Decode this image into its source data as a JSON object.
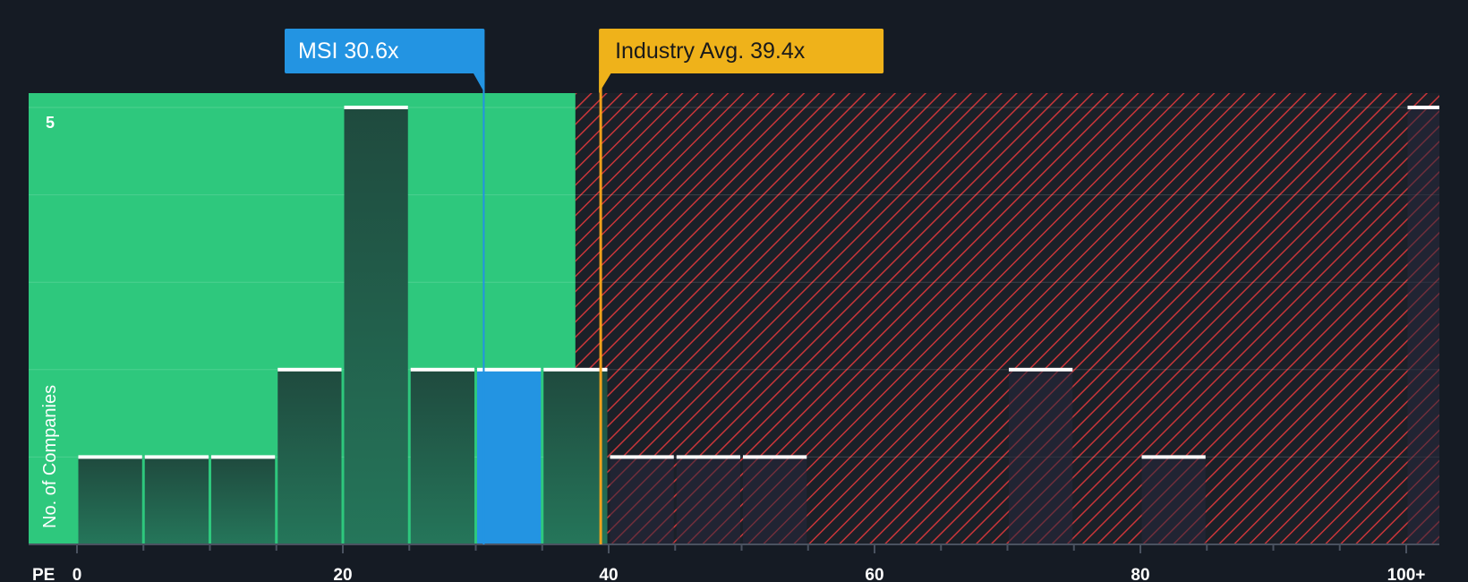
{
  "chart_data": {
    "type": "bar",
    "xlabel": "PE",
    "ylabel": "No. of Companies",
    "x_ticks": [
      "0",
      "20",
      "40",
      "60",
      "80",
      "100+"
    ],
    "y_ticks": [
      "5"
    ],
    "ylim": [
      0,
      5.2
    ],
    "bin_width": 5,
    "bins": [
      {
        "start": 0,
        "count": 1
      },
      {
        "start": 5,
        "count": 1
      },
      {
        "start": 10,
        "count": 1
      },
      {
        "start": 15,
        "count": 2
      },
      {
        "start": 20,
        "count": 5
      },
      {
        "start": 25,
        "count": 2
      },
      {
        "start": 30,
        "count": 2,
        "highlight": true
      },
      {
        "start": 35,
        "count": 2
      },
      {
        "start": 40,
        "count": 1
      },
      {
        "start": 45,
        "count": 1
      },
      {
        "start": 50,
        "count": 1
      },
      {
        "start": 70,
        "count": 2
      },
      {
        "start": 80,
        "count": 1
      },
      {
        "start": 100,
        "count": 5
      }
    ],
    "company": {
      "label": "MSI 30.6x",
      "value": 30.6
    },
    "industry": {
      "label": "Industry Avg. 39.4x",
      "value": 39.4
    },
    "fair_zone_end": 37.5,
    "colors": {
      "background": "#151b24",
      "fair_zone": "#2ec87d",
      "overvalued_hatch": "#d63c3c",
      "bar": "#1e4b3d",
      "bar_highlight": "#2394e2",
      "company_label": "#2394e2",
      "industry_label": "#efb21a",
      "industry_line": "#f0a21c"
    }
  }
}
